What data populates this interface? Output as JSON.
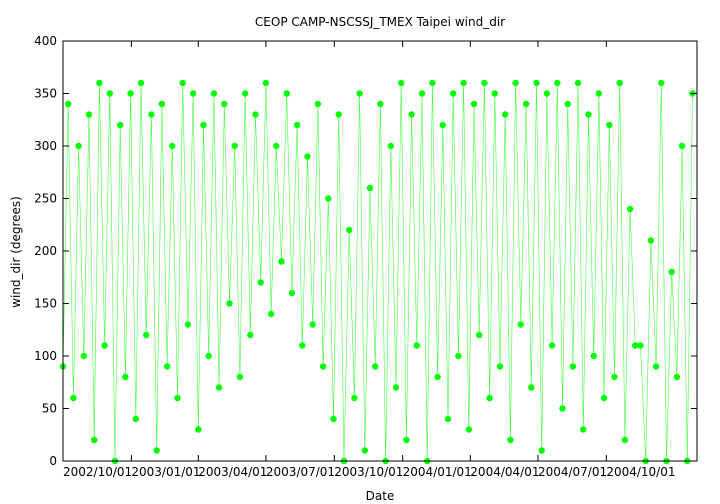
{
  "chart_data": {
    "type": "scatter",
    "title": "CEOP CAMP-NSCSSJ_TMEX Taipei  wind_dir",
    "xlabel": "Date",
    "ylabel": "wind_dir (degrees)",
    "ylim": [
      0,
      400
    ],
    "yticks": [
      0,
      50,
      100,
      150,
      200,
      250,
      300,
      350,
      400
    ],
    "xlim": [
      "2002-10-01",
      "2005-01-31"
    ],
    "xticks": [
      {
        "date": "2002-10-01",
        "label": "2002/10/01"
      },
      {
        "date": "2003-01-01",
        "label": "2003/01/01"
      },
      {
        "date": "2003-04-01",
        "label": "2003/04/01"
      },
      {
        "date": "2003-07-01",
        "label": "2003/07/01"
      },
      {
        "date": "2003-10-01",
        "label": "2003/10/01"
      },
      {
        "date": "2004-01-01",
        "label": "2004/01/01"
      },
      {
        "date": "2004-04-01",
        "label": "2004/04/01"
      },
      {
        "date": "2004-07-01",
        "label": "2004/07/01"
      },
      {
        "date": "2004-10-01",
        "label": "2004/10/01"
      }
    ],
    "grid": false,
    "legend": "none",
    "series": [
      {
        "color": "#00ff00",
        "marker": "circle",
        "connected": true,
        "points": [
          [
            "2002-10-01",
            90
          ],
          [
            "2002-10-08",
            340
          ],
          [
            "2002-10-15",
            60
          ],
          [
            "2002-10-22",
            300
          ],
          [
            "2002-10-29",
            100
          ],
          [
            "2002-11-05",
            330
          ],
          [
            "2002-11-12",
            20
          ],
          [
            "2002-11-19",
            360
          ],
          [
            "2002-11-26",
            110
          ],
          [
            "2002-12-03",
            350
          ],
          [
            "2002-12-10",
            0
          ],
          [
            "2002-12-17",
            320
          ],
          [
            "2002-12-24",
            80
          ],
          [
            "2002-12-31",
            350
          ],
          [
            "2003-01-07",
            40
          ],
          [
            "2003-01-14",
            360
          ],
          [
            "2003-01-21",
            120
          ],
          [
            "2003-01-28",
            330
          ],
          [
            "2003-02-04",
            10
          ],
          [
            "2003-02-11",
            340
          ],
          [
            "2003-02-18",
            90
          ],
          [
            "2003-02-25",
            300
          ],
          [
            "2003-03-04",
            60
          ],
          [
            "2003-03-11",
            360
          ],
          [
            "2003-03-18",
            130
          ],
          [
            "2003-03-25",
            350
          ],
          [
            "2003-04-01",
            30
          ],
          [
            "2003-04-08",
            320
          ],
          [
            "2003-04-15",
            100
          ],
          [
            "2003-04-22",
            350
          ],
          [
            "2003-04-29",
            70
          ],
          [
            "2003-05-06",
            340
          ],
          [
            "2003-05-13",
            150
          ],
          [
            "2003-05-20",
            300
          ],
          [
            "2003-05-27",
            80
          ],
          [
            "2003-06-03",
            350
          ],
          [
            "2003-06-10",
            120
          ],
          [
            "2003-06-17",
            330
          ],
          [
            "2003-06-24",
            170
          ],
          [
            "2003-07-01",
            360
          ],
          [
            "2003-07-08",
            140
          ],
          [
            "2003-07-15",
            300
          ],
          [
            "2003-07-22",
            190
          ],
          [
            "2003-07-29",
            350
          ],
          [
            "2003-08-05",
            160
          ],
          [
            "2003-08-12",
            320
          ],
          [
            "2003-08-19",
            110
          ],
          [
            "2003-08-26",
            290
          ],
          [
            "2003-09-02",
            130
          ],
          [
            "2003-09-09",
            340
          ],
          [
            "2003-09-16",
            90
          ],
          [
            "2003-09-23",
            250
          ],
          [
            "2003-09-30",
            40
          ],
          [
            "2003-10-07",
            330
          ],
          [
            "2003-10-14",
            0
          ],
          [
            "2003-10-21",
            220
          ],
          [
            "2003-10-28",
            60
          ],
          [
            "2003-11-04",
            350
          ],
          [
            "2003-11-11",
            10
          ],
          [
            "2003-11-18",
            260
          ],
          [
            "2003-11-25",
            90
          ],
          [
            "2003-12-02",
            340
          ],
          [
            "2003-12-09",
            0
          ],
          [
            "2003-12-16",
            300
          ],
          [
            "2003-12-23",
            70
          ],
          [
            "2003-12-30",
            360
          ],
          [
            "2004-01-06",
            20
          ],
          [
            "2004-01-13",
            330
          ],
          [
            "2004-01-20",
            110
          ],
          [
            "2004-01-27",
            350
          ],
          [
            "2004-02-03",
            0
          ],
          [
            "2004-02-10",
            360
          ],
          [
            "2004-02-17",
            80
          ],
          [
            "2004-02-24",
            320
          ],
          [
            "2004-03-02",
            40
          ],
          [
            "2004-03-09",
            350
          ],
          [
            "2004-03-16",
            100
          ],
          [
            "2004-03-23",
            360
          ],
          [
            "2004-03-30",
            30
          ],
          [
            "2004-04-06",
            340
          ],
          [
            "2004-04-13",
            120
          ],
          [
            "2004-04-20",
            360
          ],
          [
            "2004-04-27",
            60
          ],
          [
            "2004-05-04",
            350
          ],
          [
            "2004-05-11",
            90
          ],
          [
            "2004-05-18",
            330
          ],
          [
            "2004-05-25",
            20
          ],
          [
            "2004-06-01",
            360
          ],
          [
            "2004-06-08",
            130
          ],
          [
            "2004-06-15",
            340
          ],
          [
            "2004-06-22",
            70
          ],
          [
            "2004-06-29",
            360
          ],
          [
            "2004-07-06",
            10
          ],
          [
            "2004-07-13",
            350
          ],
          [
            "2004-07-20",
            110
          ],
          [
            "2004-07-27",
            360
          ],
          [
            "2004-08-03",
            50
          ],
          [
            "2004-08-10",
            340
          ],
          [
            "2004-08-17",
            90
          ],
          [
            "2004-08-24",
            360
          ],
          [
            "2004-08-31",
            30
          ],
          [
            "2004-09-07",
            330
          ],
          [
            "2004-09-14",
            100
          ],
          [
            "2004-09-21",
            350
          ],
          [
            "2004-09-28",
            60
          ],
          [
            "2004-10-05",
            320
          ],
          [
            "2004-10-12",
            80
          ],
          [
            "2004-10-19",
            360
          ],
          [
            "2004-10-26",
            20
          ],
          [
            "2004-11-02",
            240
          ],
          [
            "2004-11-09",
            110
          ],
          [
            "2004-11-16",
            110
          ],
          [
            "2004-11-23",
            0
          ],
          [
            "2004-11-30",
            210
          ],
          [
            "2004-12-07",
            90
          ],
          [
            "2004-12-14",
            360
          ],
          [
            "2004-12-21",
            0
          ],
          [
            "2004-12-28",
            180
          ],
          [
            "2005-01-04",
            80
          ],
          [
            "2005-01-11",
            300
          ],
          [
            "2005-01-18",
            0
          ],
          [
            "2005-01-25",
            350
          ]
        ]
      }
    ]
  }
}
